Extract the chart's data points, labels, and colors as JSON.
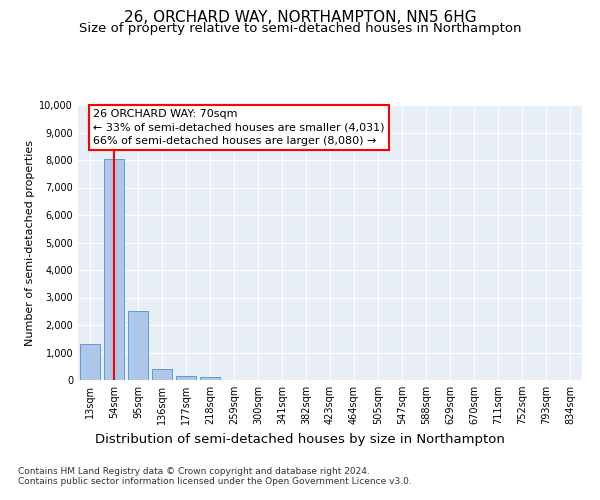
{
  "title": "26, ORCHARD WAY, NORTHAMPTON, NN5 6HG",
  "subtitle": "Size of property relative to semi-detached houses in Northampton",
  "xlabel_bottom": "Distribution of semi-detached houses by size in Northampton",
  "ylabel": "Number of semi-detached properties",
  "footer_line1": "Contains HM Land Registry data © Crown copyright and database right 2024.",
  "footer_line2": "Contains public sector information licensed under the Open Government Licence v3.0.",
  "categories": [
    "13sqm",
    "54sqm",
    "95sqm",
    "136sqm",
    "177sqm",
    "218sqm",
    "259sqm",
    "300sqm",
    "341sqm",
    "382sqm",
    "423sqm",
    "464sqm",
    "505sqm",
    "547sqm",
    "588sqm",
    "629sqm",
    "670sqm",
    "711sqm",
    "752sqm",
    "793sqm",
    "834sqm"
  ],
  "values": [
    1300,
    8050,
    2500,
    400,
    150,
    110,
    0,
    0,
    0,
    0,
    0,
    0,
    0,
    0,
    0,
    0,
    0,
    0,
    0,
    0,
    0
  ],
  "bar_color": "#aec6e8",
  "bar_edge_color": "#5b9bd5",
  "annotation_line1": "26 ORCHARD WAY: 70sqm",
  "annotation_line2": "← 33% of semi-detached houses are smaller (4,031)",
  "annotation_line3": "66% of semi-detached houses are larger (8,080) →",
  "red_line_x": 1.0,
  "ylim": [
    0,
    10000
  ],
  "yticks": [
    0,
    1000,
    2000,
    3000,
    4000,
    5000,
    6000,
    7000,
    8000,
    9000,
    10000
  ],
  "background_color": "#e8eef5",
  "grid_color": "#ffffff",
  "title_fontsize": 11,
  "subtitle_fontsize": 9.5,
  "ylabel_fontsize": 8,
  "tick_fontsize": 7,
  "annotation_fontsize": 8,
  "footer_fontsize": 6.5
}
